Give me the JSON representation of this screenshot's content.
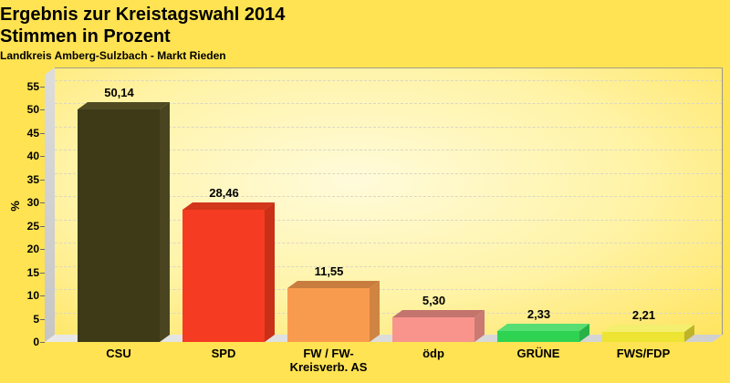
{
  "chart_data": {
    "type": "bar",
    "title": "Ergebnis zur Kreistagswahl 2014",
    "subtitle": "Stimmen in Prozent",
    "caption": "Landkreis Amberg-Sulzbach - Markt Rieden",
    "ylabel": "%",
    "xlabel": "",
    "ylim": [
      0,
      55
    ],
    "ytick_step": 5,
    "grid": "horizontal-dashed",
    "legend": "none",
    "projection": "3d-oblique",
    "decimal_separator": ",",
    "categories": [
      "CSU",
      "SPD",
      "FW / FW-Kreisverb. AS",
      "ödp",
      "GRÜNE",
      "FWS/FDP"
    ],
    "category_label_lines": [
      [
        "CSU"
      ],
      [
        "SPD"
      ],
      [
        "FW / FW-",
        "Kreisverb. AS"
      ],
      [
        "ödp"
      ],
      [
        "GRÜNE"
      ],
      [
        "FWS/FDP"
      ]
    ],
    "values": [
      50.14,
      28.46,
      11.55,
      5.3,
      2.33,
      2.21
    ],
    "value_labels": [
      "50,14",
      "28,46",
      "11,55",
      "5,30",
      "2,33",
      "2,21"
    ],
    "bar_colors": [
      {
        "party": "CSU",
        "front": "#3E3A18",
        "top": "#4F4A22",
        "side": "#4A4520"
      },
      {
        "party": "SPD",
        "front": "#F53C22",
        "top": "#D2361B",
        "side": "#C93018"
      },
      {
        "party": "FW / FW-Kreisverb. AS",
        "front": "#F99B4E",
        "top": "#C87D3E",
        "side": "#D08441"
      },
      {
        "party": "ödp",
        "front": "#F8948C",
        "top": "#C3746D",
        "side": "#CB7A73"
      },
      {
        "party": "GRÜNE",
        "front": "#2FD352",
        "top": "#57DE73",
        "side": "#28B246"
      },
      {
        "party": "FWS/FDP",
        "front": "#EDE433",
        "top": "#F4EF6E",
        "side": "#BDB429"
      }
    ],
    "layout_colors": {
      "background": "#FFE352",
      "plot_center": "#FFFBDB",
      "plot_mid": "#FFF3A6",
      "plot_edge": "#FFE45E",
      "wall_light": "#DDDDDD",
      "wall_dark": "#C6C6C6",
      "floor_light": "#E9E9E9",
      "floor_dark": "#D0D0D0",
      "grid": "#DBD7C4",
      "text": "#000000"
    }
  }
}
